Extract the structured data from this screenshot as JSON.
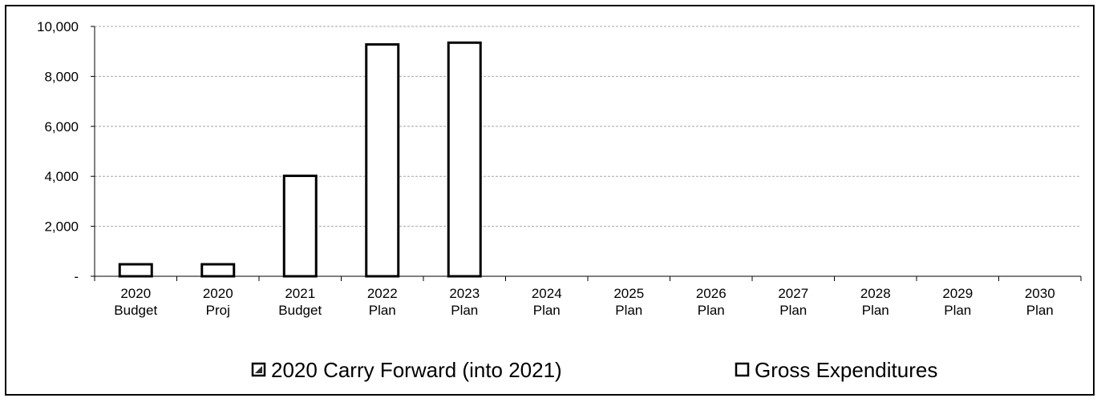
{
  "chart_data": {
    "type": "bar",
    "categories": [
      [
        "2020",
        "Budget"
      ],
      [
        "2020",
        "Proj"
      ],
      [
        "2021",
        "Budget"
      ],
      [
        "2022",
        "Plan"
      ],
      [
        "2023",
        "Plan"
      ],
      [
        "2024",
        "Plan"
      ],
      [
        "2025",
        "Plan"
      ],
      [
        "2026",
        "Plan"
      ],
      [
        "2027",
        "Plan"
      ],
      [
        "2028",
        "Plan"
      ],
      [
        "2029",
        "Plan"
      ],
      [
        "2030",
        "Plan"
      ]
    ],
    "series": [
      {
        "name": "2020 Carry Forward (into 2021)",
        "values": [
          0,
          0,
          0,
          0,
          0,
          0,
          0,
          0,
          0,
          0,
          0,
          0
        ]
      },
      {
        "name": "Gross Expenditures",
        "values": [
          480,
          480,
          4020,
          9280,
          9350,
          0,
          0,
          0,
          0,
          0,
          0,
          0
        ]
      }
    ],
    "ylim": [
      0,
      10000
    ],
    "yticks": [
      0,
      2000,
      4000,
      6000,
      8000,
      10000
    ],
    "ytick_labels": [
      "-",
      "2,000",
      "4,000",
      "6,000",
      "8,000",
      "10,000"
    ],
    "grid": true,
    "legend_position": "bottom",
    "colors": {
      "bar_fill": "#ffffff",
      "bar_stroke": "#000000",
      "grid": "#a6a6a6",
      "carry_forward_fill": "#2b2b2b"
    }
  }
}
